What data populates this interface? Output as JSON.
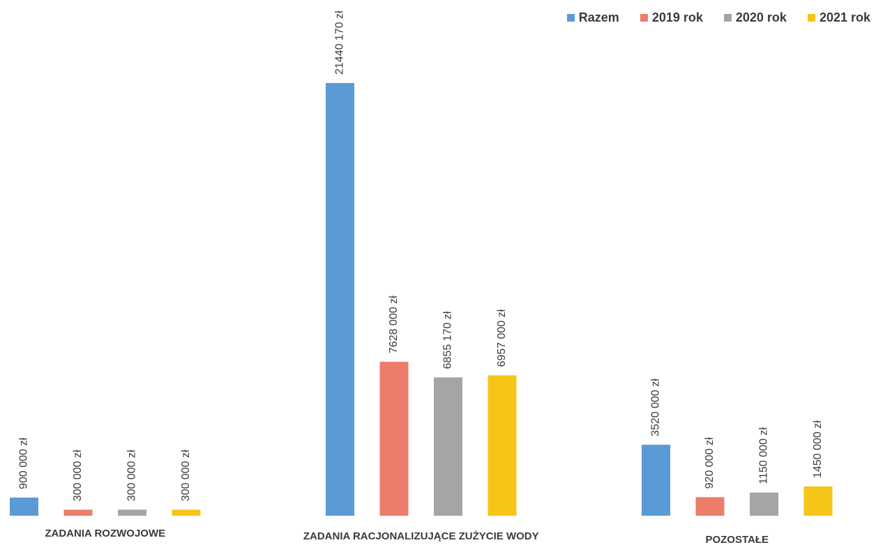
{
  "chart_data": {
    "type": "bar",
    "title": "",
    "xlabel": "",
    "ylabel": "",
    "ylim": [
      0,
      24000000
    ],
    "grid": false,
    "legend_position": "top-right",
    "categories": [
      "ZADANIA ROZWOJOWE",
      "ZADANIA RACJONALIZUJĄCE ZUŻYCIE WODY",
      "POZOSTAŁE"
    ],
    "series": [
      {
        "name": "Razem",
        "color": "#5b9bd5",
        "values": [
          900000,
          21440170,
          3520000
        ],
        "labels": [
          "900 000 zł",
          "21440 170 zł",
          "3520 000 zł"
        ]
      },
      {
        "name": "2019 rok",
        "color": "#ed7d6b",
        "values": [
          300000,
          7628000,
          920000
        ],
        "labels": [
          "300 000 zł",
          "7628 000 zł",
          "920 000 zł"
        ]
      },
      {
        "name": "2020 rok",
        "color": "#a5a5a5",
        "values": [
          300000,
          6855170,
          1150000
        ],
        "labels": [
          "300 000 zł",
          "6855 170 zł",
          "1150 000 zł"
        ]
      },
      {
        "name": "2021 rok",
        "color": "#f5c518",
        "values": [
          300000,
          6957000,
          1450000
        ],
        "labels": [
          "300 000 zł",
          "6957 000 zł",
          "1450 000 zł"
        ]
      }
    ]
  }
}
